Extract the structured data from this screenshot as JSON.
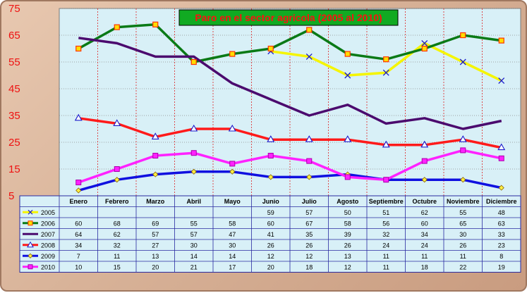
{
  "chart_data": {
    "type": "line",
    "title": "Paro en el sector agricola (2005 al 2010)",
    "categories": [
      "Enero",
      "Febrero",
      "Marzo",
      "Abril",
      "Mayo",
      "Junio",
      "Julio",
      "Agosto",
      "Septiembre",
      "Octubre",
      "Noviembre",
      "Diciembre"
    ],
    "ylim": [
      5,
      75
    ],
    "yticks": [
      "5",
      "15",
      "25",
      "35",
      "45",
      "55",
      "65",
      "75"
    ],
    "grid": true,
    "legend_placement": "bottom data table",
    "series": [
      {
        "name": "2005",
        "color": "#f5f500",
        "marker": "x",
        "values": [
          null,
          null,
          null,
          null,
          null,
          59,
          57,
          50,
          51,
          62,
          55,
          48
        ],
        "labels": [
          "",
          "",
          "",
          "",
          "",
          "59",
          "57",
          "50",
          "51",
          "62",
          "55",
          "48"
        ]
      },
      {
        "name": "2006",
        "color": "#0a7a16",
        "marker": "square",
        "values": [
          60,
          68,
          69,
          55,
          58,
          60,
          67,
          58,
          56,
          60,
          65,
          63
        ],
        "labels": [
          "60",
          "68",
          "69",
          "55",
          "58",
          "60",
          "67",
          "58",
          "56",
          "60",
          "65",
          "63"
        ]
      },
      {
        "name": "2007",
        "color": "#4b0a6e",
        "marker": "none",
        "values": [
          64,
          62,
          57,
          57,
          47,
          41,
          35,
          39,
          32,
          34,
          30,
          33
        ],
        "labels": [
          "64",
          "62",
          "57",
          "57",
          "47",
          "41",
          "35",
          "39",
          "32",
          "34",
          "30",
          "33"
        ]
      },
      {
        "name": "2008",
        "color": "#ff1a1a",
        "marker": "none",
        "values": [
          34,
          32,
          27,
          30,
          30,
          26,
          26,
          26,
          24,
          24,
          26,
          23
        ],
        "labels": [
          "34",
          "32",
          "27",
          "30",
          "30",
          "26",
          "26",
          "26",
          "24",
          "24",
          "26",
          "23"
        ]
      },
      {
        "name": "2009",
        "color": "#1010e0",
        "marker": "diamond",
        "values": [
          7,
          11,
          13,
          14,
          14,
          12,
          12,
          13,
          11,
          11,
          11,
          8
        ],
        "labels": [
          "7",
          "11",
          "13",
          "14",
          "14",
          "12",
          "12",
          "13",
          "11",
          "11",
          "11",
          "8"
        ]
      },
      {
        "name": "2010",
        "color": "#ff22ff",
        "marker": "square",
        "values": [
          10,
          15,
          20,
          21,
          17,
          20,
          18,
          12,
          11,
          18,
          22,
          19
        ],
        "labels": [
          "10",
          "15",
          "20",
          "21",
          "17",
          "20",
          "18",
          "12",
          "11",
          "18",
          "22",
          "19"
        ]
      }
    ]
  }
}
